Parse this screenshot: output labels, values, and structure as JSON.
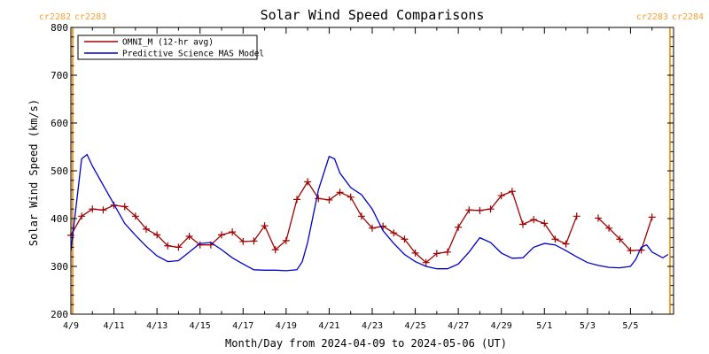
{
  "chart_data": {
    "type": "line",
    "title": "Solar Wind Speed Comparisons",
    "xlabel": "Month/Day from 2024-04-09 to 2024-05-06 (UT)",
    "ylabel": "Solar Wind Speed (km/s)",
    "xlim": [
      "2024-04-09",
      "2024-05-07T00:00"
    ],
    "ylim": [
      200,
      800
    ],
    "grid": false,
    "legend_position": "top-left",
    "x_tick_labels": [
      "4/9",
      "4/11",
      "4/13",
      "4/15",
      "4/17",
      "4/19",
      "4/21",
      "4/23",
      "4/25",
      "4/27",
      "4/29",
      "5/1",
      "5/3",
      "5/5"
    ],
    "x_tick_dates": [
      "2024-04-09",
      "2024-04-11",
      "2024-04-13",
      "2024-04-15",
      "2024-04-17",
      "2024-04-19",
      "2024-04-21",
      "2024-04-23",
      "2024-04-25",
      "2024-04-27",
      "2024-04-29",
      "2024-05-01",
      "2024-05-03",
      "2024-05-05"
    ],
    "y_ticks": [
      200,
      300,
      400,
      500,
      600,
      700,
      800
    ],
    "carrington_markers": [
      {
        "date": "2024-04-09T02:00",
        "left_label": "cr2282",
        "right_label": "cr2283",
        "color": "#f5a030"
      },
      {
        "date": "2024-05-06T20:00",
        "left_label": "cr2283",
        "right_label": "cr2284",
        "color": "#f5a030"
      }
    ],
    "series": [
      {
        "name": "OMNI_M (12-hr avg)",
        "color": "#a00000",
        "marker": "+",
        "points": [
          [
            "2024-04-09T00:00",
            365
          ],
          [
            "2024-04-09T12:00",
            405
          ],
          [
            "2024-04-10T00:00",
            420
          ],
          [
            "2024-04-10T12:00",
            418
          ],
          [
            "2024-04-11T00:00",
            428
          ],
          [
            "2024-04-11T12:00",
            425
          ],
          [
            "2024-04-12T00:00",
            405
          ],
          [
            "2024-04-12T12:00",
            378
          ],
          [
            "2024-04-13T00:00",
            366
          ],
          [
            "2024-04-13T12:00",
            343
          ],
          [
            "2024-04-14T00:00",
            340
          ],
          [
            "2024-04-14T12:00",
            363
          ],
          [
            "2024-04-15T00:00",
            345
          ],
          [
            "2024-04-15T12:00",
            345
          ],
          [
            "2024-04-16T00:00",
            366
          ],
          [
            "2024-04-16T12:00",
            372
          ],
          [
            "2024-04-17T00:00",
            352
          ],
          [
            "2024-04-17T12:00",
            353
          ],
          [
            "2024-04-18T00:00",
            385
          ],
          [
            "2024-04-18T12:00",
            335
          ],
          [
            "2024-04-19T00:00",
            354
          ],
          [
            "2024-04-19T12:00",
            440
          ],
          [
            "2024-04-20T00:00",
            477
          ],
          [
            "2024-04-20T12:00",
            442
          ],
          [
            "2024-04-21T00:00",
            439
          ],
          [
            "2024-04-21T12:00",
            455
          ],
          [
            "2024-04-22T00:00",
            445
          ],
          [
            "2024-04-22T12:00",
            405
          ],
          [
            "2024-04-23T00:00",
            380
          ],
          [
            "2024-04-23T12:00",
            384
          ],
          [
            "2024-04-24T00:00",
            370
          ],
          [
            "2024-04-24T12:00",
            357
          ],
          [
            "2024-04-25T00:00",
            328
          ],
          [
            "2024-04-25T12:00",
            308
          ],
          [
            "2024-04-26T00:00",
            327
          ],
          [
            "2024-04-26T12:00",
            330
          ],
          [
            "2024-04-27T00:00",
            382
          ],
          [
            "2024-04-27T12:00",
            418
          ],
          [
            "2024-04-28T00:00",
            417
          ],
          [
            "2024-04-28T12:00",
            420
          ],
          [
            "2024-04-29T00:00",
            448
          ],
          [
            "2024-04-29T12:00",
            457
          ],
          [
            "2024-04-30T00:00",
            388
          ],
          [
            "2024-04-30T12:00",
            398
          ],
          [
            "2024-05-01T00:00",
            390
          ],
          [
            "2024-05-01T12:00",
            357
          ],
          [
            "2024-05-02T00:00",
            347
          ],
          [
            "2024-05-02T12:00",
            405
          ],
          null,
          [
            "2024-05-03T12:00",
            401
          ],
          [
            "2024-05-04T00:00",
            380
          ],
          [
            "2024-05-04T12:00",
            357
          ],
          [
            "2024-05-05T00:00",
            333
          ],
          [
            "2024-05-05T12:00",
            334
          ],
          [
            "2024-05-06T00:00",
            403
          ]
        ]
      },
      {
        "name": "Predictive Science MAS Model",
        "color": "#0000cc",
        "marker": "none",
        "points": [
          [
            "2024-04-09T00:00",
            332
          ],
          [
            "2024-04-09T12:00",
            525
          ],
          [
            "2024-04-09T18:00",
            534
          ],
          [
            "2024-04-10T00:00",
            510
          ],
          [
            "2024-04-10T12:00",
            470
          ],
          [
            "2024-04-11T00:00",
            430
          ],
          [
            "2024-04-11T12:00",
            390
          ],
          [
            "2024-04-12T00:00",
            365
          ],
          [
            "2024-04-12T12:00",
            342
          ],
          [
            "2024-04-13T00:00",
            322
          ],
          [
            "2024-04-13T12:00",
            310
          ],
          [
            "2024-04-14T00:00",
            312
          ],
          [
            "2024-04-14T12:00",
            330
          ],
          [
            "2024-04-15T00:00",
            348
          ],
          [
            "2024-04-15T12:00",
            350
          ],
          [
            "2024-04-16T00:00",
            335
          ],
          [
            "2024-04-16T12:00",
            318
          ],
          [
            "2024-04-17T00:00",
            305
          ],
          [
            "2024-04-17T12:00",
            293
          ],
          [
            "2024-04-18T00:00",
            292
          ],
          [
            "2024-04-18T12:00",
            292
          ],
          [
            "2024-04-19T00:00",
            291
          ],
          [
            "2024-04-19T12:00",
            293
          ],
          [
            "2024-04-19T18:00",
            310
          ],
          [
            "2024-04-20T00:00",
            350
          ],
          [
            "2024-04-20T12:00",
            460
          ],
          [
            "2024-04-21T00:00",
            530
          ],
          [
            "2024-04-21T06:00",
            525
          ],
          [
            "2024-04-21T12:00",
            495
          ],
          [
            "2024-04-22T00:00",
            465
          ],
          [
            "2024-04-22T12:00",
            450
          ],
          [
            "2024-04-23T00:00",
            420
          ],
          [
            "2024-04-23T12:00",
            375
          ],
          [
            "2024-04-24T00:00",
            348
          ],
          [
            "2024-04-24T12:00",
            325
          ],
          [
            "2024-04-25T00:00",
            310
          ],
          [
            "2024-04-25T12:00",
            300
          ],
          [
            "2024-04-26T00:00",
            295
          ],
          [
            "2024-04-26T12:00",
            295
          ],
          [
            "2024-04-27T00:00",
            305
          ],
          [
            "2024-04-27T12:00",
            330
          ],
          [
            "2024-04-28T00:00",
            360
          ],
          [
            "2024-04-28T12:00",
            350
          ],
          [
            "2024-04-29T00:00",
            328
          ],
          [
            "2024-04-29T12:00",
            317
          ],
          [
            "2024-04-30T00:00",
            318
          ],
          [
            "2024-04-30T12:00",
            340
          ],
          [
            "2024-05-01T00:00",
            348
          ],
          [
            "2024-05-01T12:00",
            345
          ],
          [
            "2024-05-02T00:00",
            333
          ],
          [
            "2024-05-02T12:00",
            320
          ],
          [
            "2024-05-03T00:00",
            308
          ],
          [
            "2024-05-03T12:00",
            302
          ],
          [
            "2024-05-04T00:00",
            298
          ],
          [
            "2024-05-04T12:00",
            297
          ],
          [
            "2024-05-05T00:00",
            300
          ],
          [
            "2024-05-05T06:00",
            315
          ],
          [
            "2024-05-05T12:00",
            340
          ],
          [
            "2024-05-05T18:00",
            345
          ],
          [
            "2024-05-06T00:00",
            330
          ],
          [
            "2024-05-06T12:00",
            318
          ],
          [
            "2024-05-06T18:00",
            325
          ]
        ]
      }
    ]
  }
}
